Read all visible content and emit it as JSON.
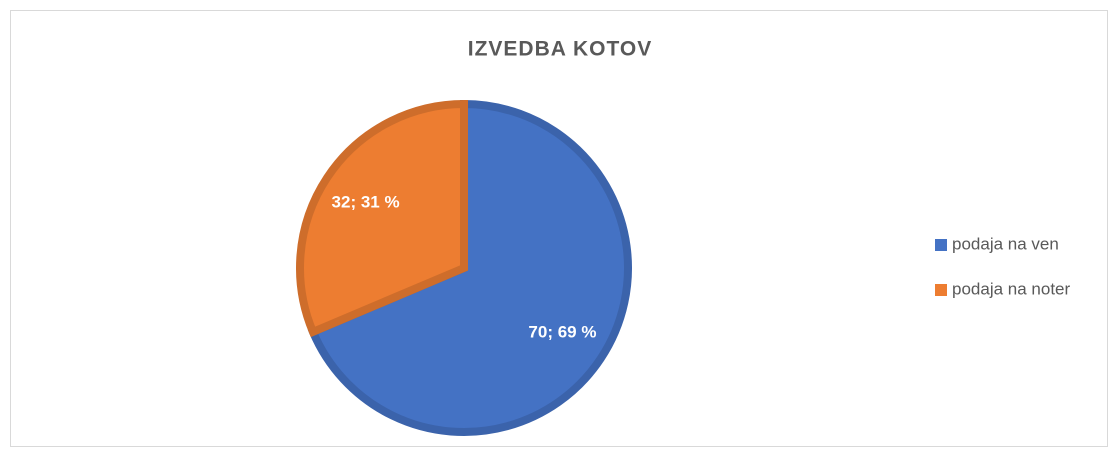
{
  "chart_data": {
    "type": "pie",
    "title": "IZVEDBA KOTOV",
    "categories": [
      "podaja na ven",
      "podaja na noter"
    ],
    "values": [
      70,
      32
    ],
    "value_labels": [
      "70; 69 %",
      "32; 31 %"
    ],
    "colors": [
      "#4472c4",
      "#ed7d31"
    ],
    "legend": "right"
  }
}
